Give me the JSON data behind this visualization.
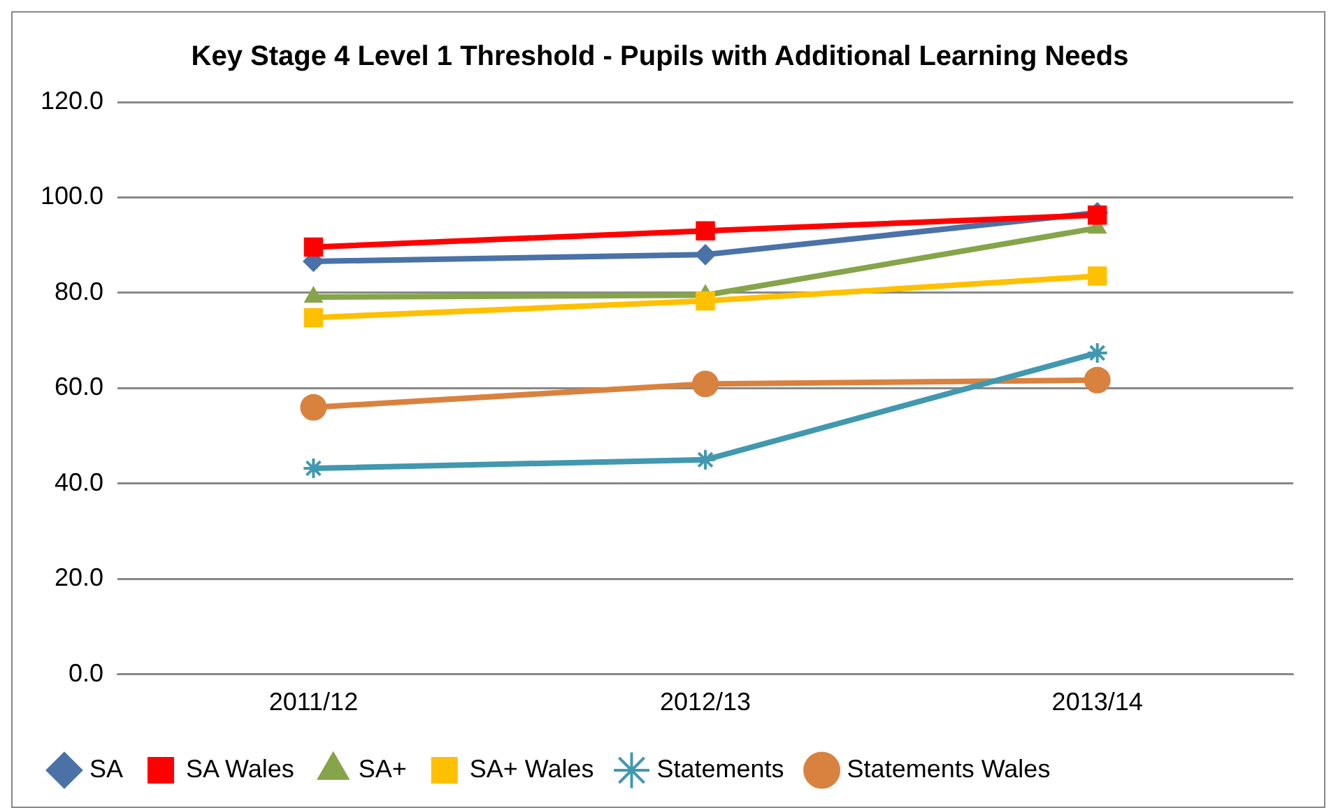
{
  "chart_data": {
    "type": "line",
    "title": "Key Stage 4 Level 1 Threshold - Pupils with Additional Learning Needs",
    "categories": [
      "2011/12",
      "2012/13",
      "2013/14"
    ],
    "series": [
      {
        "name": "SA",
        "color": "#4a72a8",
        "marker": "diamond",
        "values": [
          86.6,
          88.0,
          96.8
        ]
      },
      {
        "name": "SA Wales",
        "color": "#ff0000",
        "marker": "square",
        "values": [
          89.6,
          93.0,
          96.3
        ]
      },
      {
        "name": "SA+",
        "color": "#86a44a",
        "marker": "triangle",
        "values": [
          79.1,
          79.5,
          93.6
        ]
      },
      {
        "name": "SA+ Wales",
        "color": "#ffc000",
        "marker": "square",
        "values": [
          74.8,
          78.3,
          83.5
        ]
      },
      {
        "name": "Statements",
        "color": "#4198af",
        "marker": "cross",
        "values": [
          43.2,
          45.0,
          67.4
        ]
      },
      {
        "name": "Statements Wales",
        "color": "#d9823f",
        "marker": "circle",
        "values": [
          56.0,
          60.9,
          61.7
        ]
      }
    ],
    "ylim": [
      0,
      120
    ],
    "yticks": [
      {
        "value": 0,
        "label": "0.0"
      },
      {
        "value": 20,
        "label": "20.0"
      },
      {
        "value": 40,
        "label": "40.0"
      },
      {
        "value": 60,
        "label": "60.0"
      },
      {
        "value": 80,
        "label": "80.0"
      },
      {
        "value": 100,
        "label": "100.0"
      },
      {
        "value": 120,
        "label": "120.0"
      }
    ],
    "grid": "y",
    "legend": "bottom",
    "line_style": "solid"
  }
}
